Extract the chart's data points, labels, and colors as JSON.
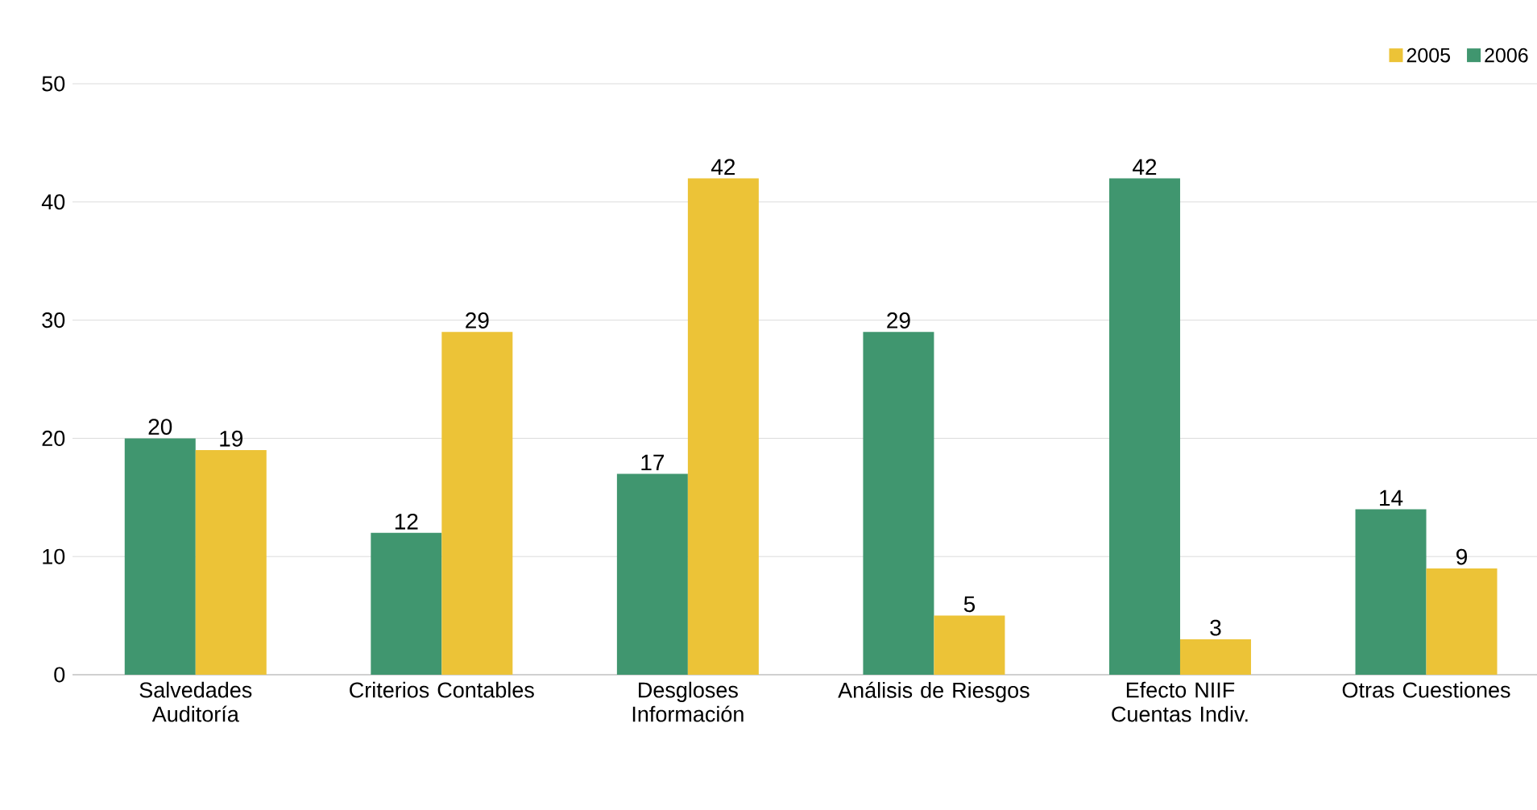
{
  "chart_data": {
    "type": "bar",
    "categories": [
      "Salvedades Auditoría",
      "Criterios Contables",
      "Desgloses Información",
      "Análisis de Riesgos",
      "Efecto NIIF Cuentas Indiv.",
      "Otras Cuestiones"
    ],
    "series": [
      {
        "name": "2006",
        "color": "#40966f",
        "values": [
          20,
          12,
          17,
          29,
          42,
          14
        ]
      },
      {
        "name": "2005",
        "color": "#ecc337",
        "values": [
          19,
          29,
          42,
          5,
          3,
          9
        ]
      }
    ],
    "ylim": [
      0,
      50
    ],
    "yticks": [
      0,
      10,
      20,
      30,
      40,
      50
    ],
    "grid": "y",
    "legend": "top right",
    "data_labels": true
  }
}
